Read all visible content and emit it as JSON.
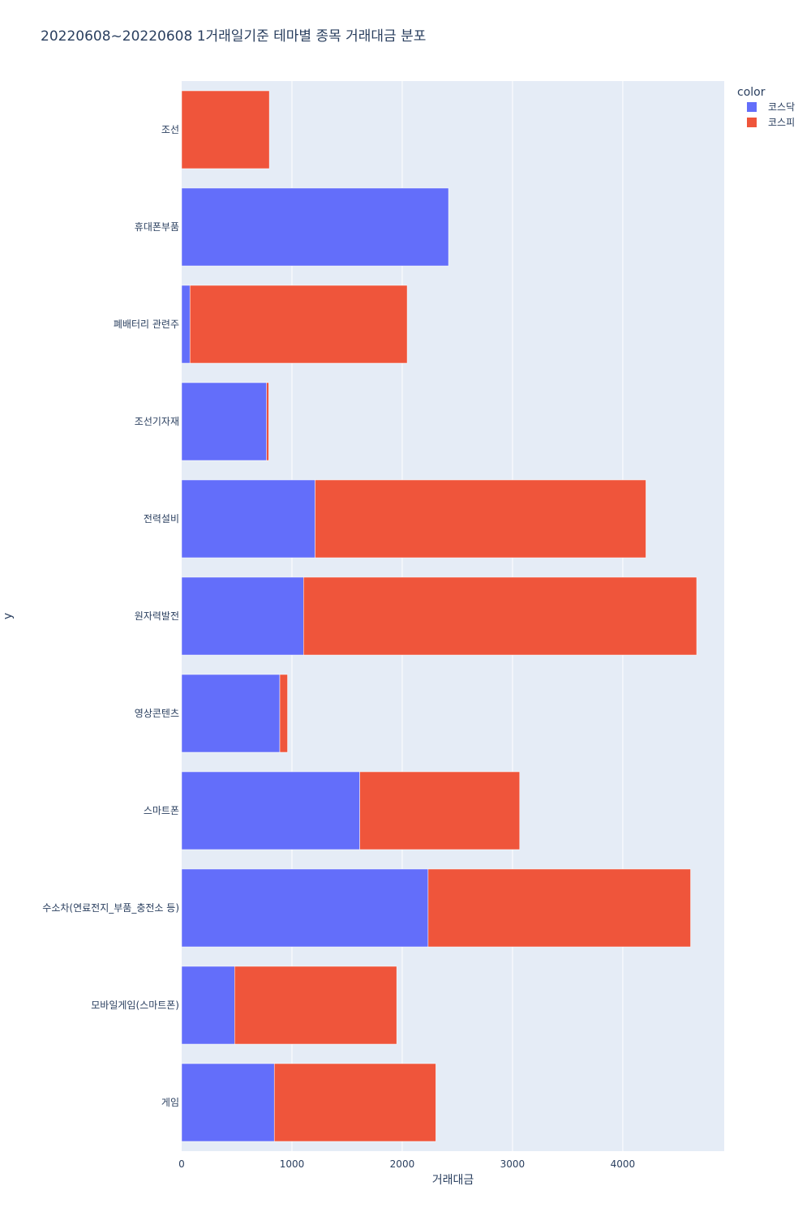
{
  "chart_data": {
    "type": "bar",
    "orientation": "horizontal",
    "barmode": "stack",
    "title": "20220608~20220608 1거래일기준 테마별 종목 거래대금 분포",
    "xlabel": "거래대금",
    "ylabel": "y",
    "xlim": [
      0,
      4920
    ],
    "xticks": [
      0,
      1000,
      2000,
      3000,
      4000
    ],
    "grid": true,
    "legend_title": "color",
    "legend_position": "top-right",
    "categories": [
      "조선",
      "휴대폰부품",
      "폐배터리 관련주",
      "조선기자재",
      "전력설비",
      "원자력발전",
      "영상콘텐츠",
      "스마트폰",
      "수소차(연료전지_부품_충전소 등)",
      "모바일게임(스마트폰)",
      "게임"
    ],
    "series": [
      {
        "name": "코스닥",
        "color": "#636efa",
        "values": [
          0,
          2420,
          75,
          770,
          1210,
          1105,
          890,
          1615,
          2235,
          480,
          840
        ]
      },
      {
        "name": "코스피",
        "color": "#ef553b",
        "values": [
          795,
          0,
          1970,
          20,
          3000,
          3565,
          70,
          1450,
          2380,
          1470,
          1465
        ]
      }
    ]
  }
}
